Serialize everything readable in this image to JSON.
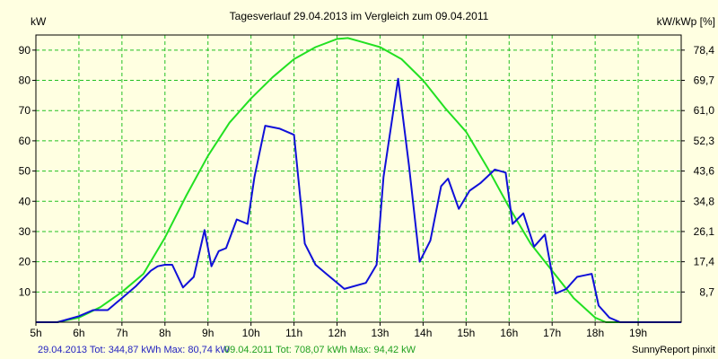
{
  "chart_data": {
    "type": "line",
    "title": "Tagesverlauf 29.04.2013 im Vergleich zum 09.04.2011",
    "ylabel_left": "kW",
    "ylabel_right": "kW/kWp [%]",
    "xlim": [
      5,
      20
    ],
    "ylim": [
      0,
      95
    ],
    "x_ticks": [
      5,
      6,
      7,
      8,
      9,
      10,
      11,
      12,
      13,
      14,
      15,
      16,
      17,
      18,
      19
    ],
    "x_tick_labels": [
      "5h",
      "6h",
      "7h",
      "8h",
      "9h",
      "10h",
      "11h",
      "12h",
      "13h",
      "14h",
      "15h",
      "16h",
      "17h",
      "18h",
      "19h"
    ],
    "y_ticks_left": [
      10,
      20,
      30,
      40,
      50,
      60,
      70,
      80,
      90
    ],
    "y_ticks_left_labels": [
      "10",
      "20",
      "30",
      "40",
      "50",
      "60",
      "70",
      "80",
      "90"
    ],
    "y_ticks_right_labels": [
      "8,7",
      "17,4",
      "26,1",
      "34,8",
      "43,6",
      "52,3",
      "61,0",
      "69,7",
      "78,4"
    ],
    "grid": true,
    "colors": {
      "background": "#ffffe1",
      "grid": "#22c022",
      "frame": "#000000",
      "series_1": "#1010d8",
      "series_2": "#22e022"
    },
    "series": [
      {
        "name": "29.04.2013",
        "x": [
          5,
          5.5,
          6,
          6.33,
          6.67,
          7,
          7.33,
          7.67,
          7.83,
          8,
          8.17,
          8.42,
          8.67,
          8.92,
          9.08,
          9.25,
          9.42,
          9.67,
          9.92,
          10.08,
          10.33,
          10.67,
          11,
          11.25,
          11.5,
          11.75,
          12.17,
          12.67,
          12.92,
          13.08,
          13.42,
          13.67,
          13.92,
          14.17,
          14.42,
          14.58,
          14.83,
          15.08,
          15.33,
          15.67,
          15.92,
          16.08,
          16.33,
          16.58,
          16.83,
          17.08,
          17.33,
          17.58,
          17.75,
          17.92,
          18.08,
          18.33,
          18.58,
          18.83,
          19.25,
          19.67,
          20
        ],
        "y": [
          0,
          0,
          2,
          4,
          4,
          8,
          12,
          17,
          18.5,
          19,
          19,
          11.5,
          15,
          30.5,
          18.5,
          23.5,
          24.5,
          34,
          32.5,
          48,
          65,
          64,
          62,
          26,
          19,
          16,
          11,
          13,
          19,
          48,
          80.5,
          52,
          20,
          27,
          45,
          47.5,
          37.5,
          43.5,
          46,
          50.5,
          49.5,
          32.5,
          36,
          25,
          29,
          9.5,
          11,
          15,
          15.5,
          16,
          5.5,
          1.5,
          0,
          0,
          0,
          0,
          0
        ]
      },
      {
        "name": "09.04.2011",
        "x": [
          5,
          5.5,
          6,
          6.5,
          7,
          7.5,
          8,
          8.5,
          9,
          9.5,
          10,
          10.5,
          11,
          11.5,
          12,
          12.25,
          12.5,
          13,
          13.5,
          14,
          14.5,
          15,
          15.5,
          16,
          16.5,
          17,
          17.5,
          18,
          18.25,
          18.5,
          18.75,
          19,
          19.5,
          20
        ],
        "y": [
          0,
          0,
          1.5,
          5,
          10,
          16,
          28,
          42,
          55,
          66,
          74,
          81,
          87,
          91,
          93.7,
          94,
          93,
          91,
          87,
          80,
          71,
          63,
          51,
          38,
          26,
          17,
          8,
          1.5,
          0,
          0,
          0,
          0,
          0,
          0
        ]
      }
    ],
    "footer": {
      "left_1": "29.04.2013 Tot: 344,87 kWh Max: 80,74 kW",
      "left_2": "09.04.2011 Tot: 708,07 kWh Max: 94,42 kW",
      "right": "SunnyReport pinxit"
    }
  }
}
